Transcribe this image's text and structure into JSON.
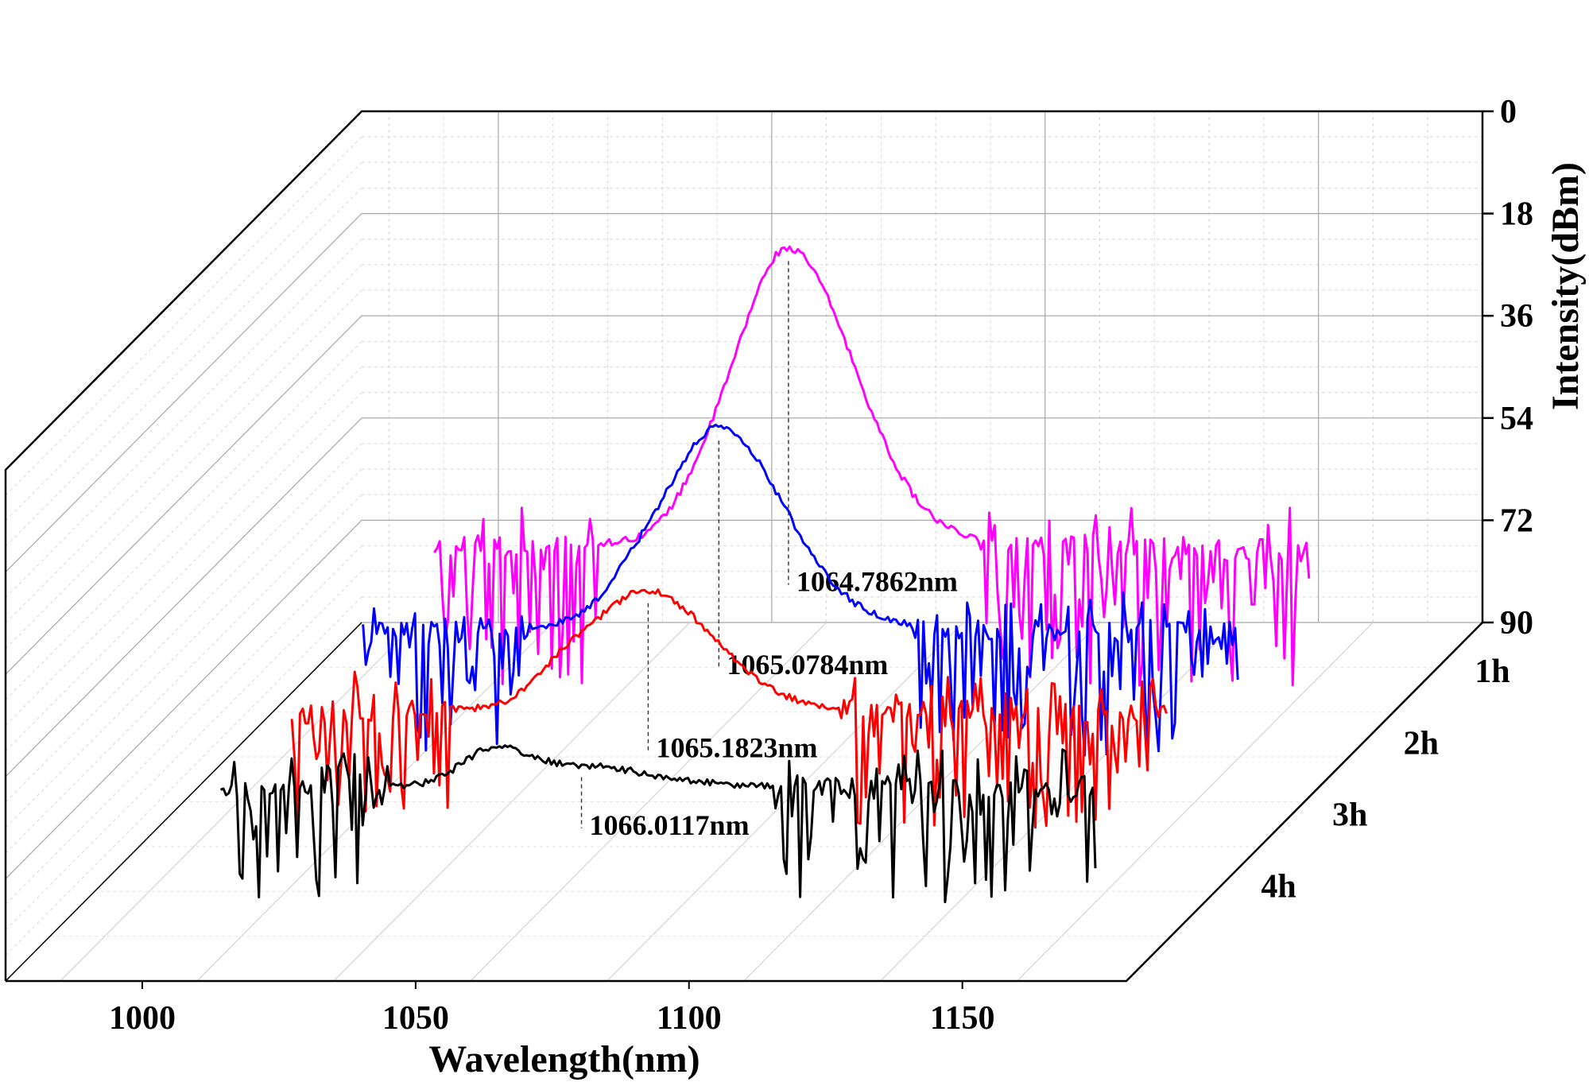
{
  "chart_data": {
    "type": "line",
    "style": "3d-waterfall",
    "title": "",
    "xlabel": "Wavelength(nm)",
    "ylabel": "",
    "zlabel": "Intensity(dBm)",
    "xlim": [
      975,
      1180
    ],
    "zlim": [
      -90,
      0
    ],
    "x_ticks": [
      {
        "value": 1000,
        "label": "1000"
      },
      {
        "value": 1050,
        "label": "1050"
      },
      {
        "value": 1100,
        "label": "1100"
      },
      {
        "value": 1150,
        "label": "1150"
      }
    ],
    "z_ticks": [
      {
        "value": 0,
        "label": "0"
      },
      {
        "value": -18,
        "label": "18"
      },
      {
        "value": -36,
        "label": "36"
      },
      {
        "value": -54,
        "label": "54"
      },
      {
        "value": -72,
        "label": "72"
      },
      {
        "value": -90,
        "label": "90"
      }
    ],
    "grid": true,
    "series": [
      {
        "name": "1h",
        "color": "#ff00ff",
        "peak_wavelength": 1064.7862,
        "peak_intensity": -13,
        "peak_label": "1064.7862nm",
        "noise_range": [
          1000,
          1160
        ],
        "noise_floor": -70
      },
      {
        "name": "2h",
        "color": "#0000ff",
        "peak_wavelength": 1065.0784,
        "peak_intensity": -32,
        "peak_label": "1065.0784nm",
        "noise_range": [
          1000,
          1160
        ],
        "noise_floor": -72
      },
      {
        "name": "3h",
        "color": "#ff0000",
        "peak_wavelength": 1065.1823,
        "peak_intensity": -48,
        "peak_label": "1065.1823nm",
        "noise_range": [
          1000,
          1160
        ],
        "noise_floor": -74
      },
      {
        "name": "4h",
        "color": "#000000",
        "peak_wavelength": 1066.0117,
        "peak_intensity": -66,
        "peak_label": "1066.0117nm",
        "noise_range": [
          1000,
          1160
        ],
        "noise_floor": -75
      }
    ]
  }
}
